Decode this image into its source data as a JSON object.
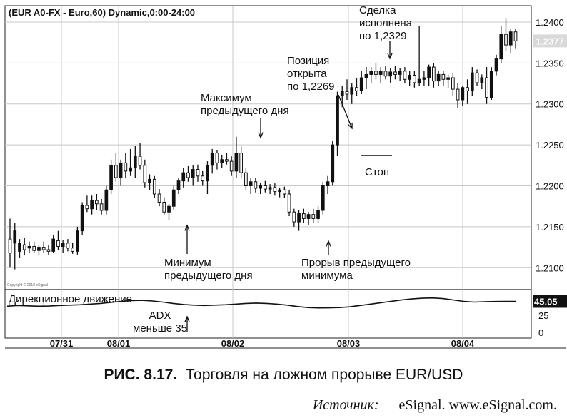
{
  "chart_data": {
    "type": "candlestick",
    "title": "(EUR A0-FX - Euro,60) Dynamic,0:00-24:00",
    "copyright": "Copyright © 2010 eSignal",
    "y_ticks": [
      "1.2400",
      "1.2350",
      "1.2300",
      "1.2250",
      "1.2200",
      "1.2150",
      "1.2100"
    ],
    "ylim": [
      1.2075,
      1.242
    ],
    "last_price": "1.2377",
    "x_ticks": [
      "07/31",
      "08/01",
      "08/02",
      "08/03",
      "08/04"
    ],
    "grid": true,
    "candles": [
      {
        "o": 1.2135,
        "h": 1.216,
        "l": 1.21,
        "c": 1.2118
      },
      {
        "o": 1.213,
        "h": 1.2155,
        "l": 1.2098,
        "c": 1.2145
      },
      {
        "o": 1.212,
        "h": 1.2135,
        "l": 1.2112,
        "c": 1.213
      },
      {
        "o": 1.2128,
        "h": 1.2136,
        "l": 1.2115,
        "c": 1.2122
      },
      {
        "o": 1.2124,
        "h": 1.2132,
        "l": 1.2118,
        "c": 1.2126
      },
      {
        "o": 1.2126,
        "h": 1.2132,
        "l": 1.2118,
        "c": 1.2121
      },
      {
        "o": 1.2121,
        "h": 1.2128,
        "l": 1.2115,
        "c": 1.2125
      },
      {
        "o": 1.2125,
        "h": 1.2132,
        "l": 1.2118,
        "c": 1.2122
      },
      {
        "o": 1.2122,
        "h": 1.2128,
        "l": 1.2116,
        "c": 1.212
      },
      {
        "o": 1.212,
        "h": 1.214,
        "l": 1.2118,
        "c": 1.2135
      },
      {
        "o": 1.2133,
        "h": 1.2145,
        "l": 1.2122,
        "c": 1.2126
      },
      {
        "o": 1.2126,
        "h": 1.2134,
        "l": 1.2118,
        "c": 1.213
      },
      {
        "o": 1.213,
        "h": 1.2135,
        "l": 1.212,
        "c": 1.2124
      },
      {
        "o": 1.2124,
        "h": 1.213,
        "l": 1.2117,
        "c": 1.212
      },
      {
        "o": 1.212,
        "h": 1.215,
        "l": 1.2116,
        "c": 1.2145
      },
      {
        "o": 1.2145,
        "h": 1.218,
        "l": 1.214,
        "c": 1.2176
      },
      {
        "o": 1.2176,
        "h": 1.2188,
        "l": 1.2168,
        "c": 1.2172
      },
      {
        "o": 1.2172,
        "h": 1.2188,
        "l": 1.2165,
        "c": 1.2182
      },
      {
        "o": 1.2182,
        "h": 1.219,
        "l": 1.217,
        "c": 1.2178
      },
      {
        "o": 1.2178,
        "h": 1.2184,
        "l": 1.2165,
        "c": 1.217
      },
      {
        "o": 1.217,
        "h": 1.22,
        "l": 1.2165,
        "c": 1.2195
      },
      {
        "o": 1.2195,
        "h": 1.2232,
        "l": 1.219,
        "c": 1.2225
      },
      {
        "o": 1.2225,
        "h": 1.224,
        "l": 1.2205,
        "c": 1.221
      },
      {
        "o": 1.221,
        "h": 1.2232,
        "l": 1.22,
        "c": 1.2228
      },
      {
        "o": 1.2228,
        "h": 1.224,
        "l": 1.221,
        "c": 1.2218
      },
      {
        "o": 1.2218,
        "h": 1.2245,
        "l": 1.2212,
        "c": 1.2222
      },
      {
        "o": 1.2222,
        "h": 1.2249,
        "l": 1.221,
        "c": 1.2236
      },
      {
        "o": 1.2236,
        "h": 1.2252,
        "l": 1.222,
        "c": 1.2225
      },
      {
        "o": 1.2225,
        "h": 1.2232,
        "l": 1.2198,
        "c": 1.2204
      },
      {
        "o": 1.2204,
        "h": 1.2214,
        "l": 1.2195,
        "c": 1.2208
      },
      {
        "o": 1.2208,
        "h": 1.2212,
        "l": 1.2185,
        "c": 1.219
      },
      {
        "o": 1.219,
        "h": 1.2196,
        "l": 1.2175,
        "c": 1.218
      },
      {
        "o": 1.218,
        "h": 1.2186,
        "l": 1.2165,
        "c": 1.2168
      },
      {
        "o": 1.2168,
        "h": 1.2178,
        "l": 1.2158,
        "c": 1.2175
      },
      {
        "o": 1.2175,
        "h": 1.22,
        "l": 1.217,
        "c": 1.2195
      },
      {
        "o": 1.2195,
        "h": 1.221,
        "l": 1.219,
        "c": 1.2206
      },
      {
        "o": 1.2206,
        "h": 1.2222,
        "l": 1.2198,
        "c": 1.2216
      },
      {
        "o": 1.2216,
        "h": 1.2224,
        "l": 1.2205,
        "c": 1.221
      },
      {
        "o": 1.221,
        "h": 1.2225,
        "l": 1.22,
        "c": 1.222
      },
      {
        "o": 1.222,
        "h": 1.2226,
        "l": 1.2205,
        "c": 1.2212
      },
      {
        "o": 1.2212,
        "h": 1.2218,
        "l": 1.22,
        "c": 1.2206
      },
      {
        "o": 1.2206,
        "h": 1.223,
        "l": 1.219,
        "c": 1.2225
      },
      {
        "o": 1.2225,
        "h": 1.2245,
        "l": 1.2215,
        "c": 1.224
      },
      {
        "o": 1.224,
        "h": 1.2244,
        "l": 1.222,
        "c": 1.2228
      },
      {
        "o": 1.2228,
        "h": 1.2238,
        "l": 1.2222,
        "c": 1.2232
      },
      {
        "o": 1.2232,
        "h": 1.224,
        "l": 1.2226,
        "c": 1.223
      },
      {
        "o": 1.223,
        "h": 1.2236,
        "l": 1.2212,
        "c": 1.2218
      },
      {
        "o": 1.2218,
        "h": 1.226,
        "l": 1.221,
        "c": 1.224
      },
      {
        "o": 1.224,
        "h": 1.2248,
        "l": 1.221,
        "c": 1.2216
      },
      {
        "o": 1.2216,
        "h": 1.2222,
        "l": 1.2195,
        "c": 1.22
      },
      {
        "o": 1.22,
        "h": 1.221,
        "l": 1.219,
        "c": 1.2205
      },
      {
        "o": 1.2205,
        "h": 1.221,
        "l": 1.2192,
        "c": 1.2197
      },
      {
        "o": 1.2197,
        "h": 1.2204,
        "l": 1.219,
        "c": 1.22
      },
      {
        "o": 1.22,
        "h": 1.2206,
        "l": 1.2192,
        "c": 1.2196
      },
      {
        "o": 1.2196,
        "h": 1.2202,
        "l": 1.219,
        "c": 1.2198
      },
      {
        "o": 1.2198,
        "h": 1.2203,
        "l": 1.2188,
        "c": 1.2193
      },
      {
        "o": 1.2193,
        "h": 1.2198,
        "l": 1.2186,
        "c": 1.2195
      },
      {
        "o": 1.2195,
        "h": 1.2199,
        "l": 1.2185,
        "c": 1.219
      },
      {
        "o": 1.219,
        "h": 1.2195,
        "l": 1.2163,
        "c": 1.2168
      },
      {
        "o": 1.2168,
        "h": 1.2172,
        "l": 1.215,
        "c": 1.2156
      },
      {
        "o": 1.2156,
        "h": 1.217,
        "l": 1.2145,
        "c": 1.2166
      },
      {
        "o": 1.2166,
        "h": 1.2172,
        "l": 1.2155,
        "c": 1.216
      },
      {
        "o": 1.216,
        "h": 1.2168,
        "l": 1.2152,
        "c": 1.2165
      },
      {
        "o": 1.2165,
        "h": 1.2172,
        "l": 1.2155,
        "c": 1.216
      },
      {
        "o": 1.216,
        "h": 1.2175,
        "l": 1.2155,
        "c": 1.217
      },
      {
        "o": 1.217,
        "h": 1.2205,
        "l": 1.2165,
        "c": 1.22
      },
      {
        "o": 1.22,
        "h": 1.2212,
        "l": 1.219,
        "c": 1.2205
      },
      {
        "o": 1.2205,
        "h": 1.2255,
        "l": 1.22,
        "c": 1.225
      },
      {
        "o": 1.225,
        "h": 1.2315,
        "l": 1.2237,
        "c": 1.231
      },
      {
        "o": 1.231,
        "h": 1.2322,
        "l": 1.2296,
        "c": 1.2315
      },
      {
        "o": 1.2315,
        "h": 1.233,
        "l": 1.2305,
        "c": 1.2312
      },
      {
        "o": 1.2312,
        "h": 1.2325,
        "l": 1.23,
        "c": 1.232
      },
      {
        "o": 1.232,
        "h": 1.2332,
        "l": 1.231,
        "c": 1.2316
      },
      {
        "o": 1.2316,
        "h": 1.234,
        "l": 1.2312,
        "c": 1.2332
      },
      {
        "o": 1.2332,
        "h": 1.2345,
        "l": 1.2318,
        "c": 1.2336
      },
      {
        "o": 1.2336,
        "h": 1.2345,
        "l": 1.2325,
        "c": 1.234
      },
      {
        "o": 1.234,
        "h": 1.235,
        "l": 1.233,
        "c": 1.2336
      },
      {
        "o": 1.2336,
        "h": 1.2345,
        "l": 1.2325,
        "c": 1.234
      },
      {
        "o": 1.234,
        "h": 1.2346,
        "l": 1.233,
        "c": 1.2334
      },
      {
        "o": 1.2334,
        "h": 1.2344,
        "l": 1.2326,
        "c": 1.2339
      },
      {
        "o": 1.2339,
        "h": 1.2346,
        "l": 1.233,
        "c": 1.2336
      },
      {
        "o": 1.2336,
        "h": 1.2344,
        "l": 1.2328,
        "c": 1.234
      },
      {
        "o": 1.234,
        "h": 1.2345,
        "l": 1.2325,
        "c": 1.233
      },
      {
        "o": 1.233,
        "h": 1.234,
        "l": 1.2322,
        "c": 1.2335
      },
      {
        "o": 1.2335,
        "h": 1.234,
        "l": 1.232,
        "c": 1.2326
      },
      {
        "o": 1.2326,
        "h": 1.2395,
        "l": 1.2322,
        "c": 1.233
      },
      {
        "o": 1.233,
        "h": 1.234,
        "l": 1.2322,
        "c": 1.2332
      },
      {
        "o": 1.2332,
        "h": 1.2348,
        "l": 1.2322,
        "c": 1.2345
      },
      {
        "o": 1.2345,
        "h": 1.235,
        "l": 1.232,
        "c": 1.2328
      },
      {
        "o": 1.2328,
        "h": 1.234,
        "l": 1.2322,
        "c": 1.2336
      },
      {
        "o": 1.2336,
        "h": 1.234,
        "l": 1.2322,
        "c": 1.233
      },
      {
        "o": 1.233,
        "h": 1.2336,
        "l": 1.232,
        "c": 1.2332
      },
      {
        "o": 1.2332,
        "h": 1.2338,
        "l": 1.231,
        "c": 1.2318
      },
      {
        "o": 1.2318,
        "h": 1.2325,
        "l": 1.2295,
        "c": 1.2305
      },
      {
        "o": 1.2305,
        "h": 1.2322,
        "l": 1.2298,
        "c": 1.232
      },
      {
        "o": 1.232,
        "h": 1.233,
        "l": 1.23,
        "c": 1.2316
      },
      {
        "o": 1.2316,
        "h": 1.2345,
        "l": 1.231,
        "c": 1.2338
      },
      {
        "o": 1.2338,
        "h": 1.2342,
        "l": 1.2322,
        "c": 1.2326
      },
      {
        "o": 1.2326,
        "h": 1.2336,
        "l": 1.2318,
        "c": 1.2332
      },
      {
        "o": 1.2332,
        "h": 1.2345,
        "l": 1.23,
        "c": 1.2308
      },
      {
        "o": 1.2308,
        "h": 1.2345,
        "l": 1.2305,
        "c": 1.234
      },
      {
        "o": 1.234,
        "h": 1.236,
        "l": 1.2335,
        "c": 1.2355
      },
      {
        "o": 1.2355,
        "h": 1.2395,
        "l": 1.235,
        "c": 1.2385
      },
      {
        "o": 1.2385,
        "h": 1.2405,
        "l": 1.2365,
        "c": 1.2372
      },
      {
        "o": 1.2372,
        "h": 1.2392,
        "l": 1.2362,
        "c": 1.2388
      },
      {
        "o": 1.2388,
        "h": 1.2392,
        "l": 1.2368,
        "c": 1.2377
      }
    ],
    "adx_panel": {
      "label": "Дирекционное движение",
      "value_label": "45.05",
      "y_ticks": [
        "25",
        "0"
      ],
      "ylim": [
        0,
        60
      ],
      "values": [
        38,
        39,
        38.5,
        38,
        38.2,
        39,
        39.5,
        40,
        41,
        42,
        43.5,
        45,
        46,
        46.5,
        45.5,
        44,
        42,
        40.5,
        39.5,
        39,
        39.5,
        40,
        41,
        42,
        42.5,
        42,
        41,
        39.5,
        37.5,
        36,
        35.5,
        35.6,
        36,
        37,
        39,
        41,
        43,
        45,
        47,
        48.5,
        49.5,
        50,
        49,
        47,
        45,
        44,
        44.5,
        44.8,
        45,
        45.05
      ]
    },
    "annotations": [
      {
        "text": "Сделка\nисполнена\nпо 1,2329"
      },
      {
        "text": "Позиция\nоткрыта\nпо 1,2269"
      },
      {
        "text": "Максимум\nпредыдущего дня"
      },
      {
        "text": "Стоп"
      },
      {
        "text": "Минимум\nпредыдущего дня"
      },
      {
        "text": "Прорыв предыдущего\nминимума"
      },
      {
        "text": "ADX\nменьше 35"
      }
    ]
  },
  "caption": {
    "label": "РИС. 8.17.",
    "text": "Торговля на ложном прорыве EUR/USD"
  },
  "source": {
    "label": "Источник:",
    "text": "eSignal. www.eSignal.com."
  }
}
